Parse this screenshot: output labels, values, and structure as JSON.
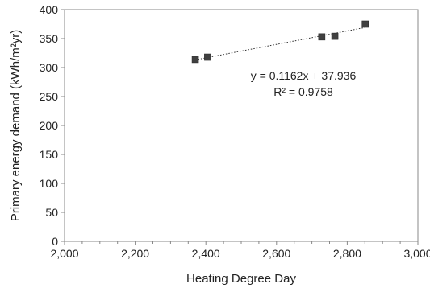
{
  "chart_data": {
    "type": "scatter",
    "xlabel": "Heating Degree Day",
    "ylabel": "Primary energy demand (kWh/m²yr)",
    "xlim": [
      2000,
      3000
    ],
    "ylim": [
      0,
      400
    ],
    "x_ticks": [
      2000,
      2200,
      2400,
      2600,
      2800,
      3000
    ],
    "x_tick_labels": [
      "2,000",
      "2,200",
      "2,400",
      "2,600",
      "2,800",
      "3,000"
    ],
    "y_ticks": [
      0,
      50,
      100,
      150,
      200,
      250,
      300,
      350,
      400
    ],
    "y_tick_labels": [
      "0",
      "50",
      "100",
      "150",
      "200",
      "250",
      "300",
      "350",
      "400"
    ],
    "grid": "none",
    "legend": "none",
    "points": [
      {
        "x": 2370,
        "y": 314
      },
      {
        "x": 2405,
        "y": 318
      },
      {
        "x": 2728,
        "y": 353
      },
      {
        "x": 2765,
        "y": 354
      },
      {
        "x": 2851,
        "y": 375
      }
    ],
    "trendline": {
      "type": "linear",
      "slope": 0.1162,
      "intercept": 37.936,
      "x_range": [
        2370,
        2851
      ],
      "style": "dotted"
    },
    "annotations": {
      "equation": "y = 0.1162x + 37.936",
      "r_squared": "R² = 0.9758"
    },
    "colors": {
      "marker": "#404040",
      "axis": "#888888",
      "text": "#222222"
    }
  }
}
